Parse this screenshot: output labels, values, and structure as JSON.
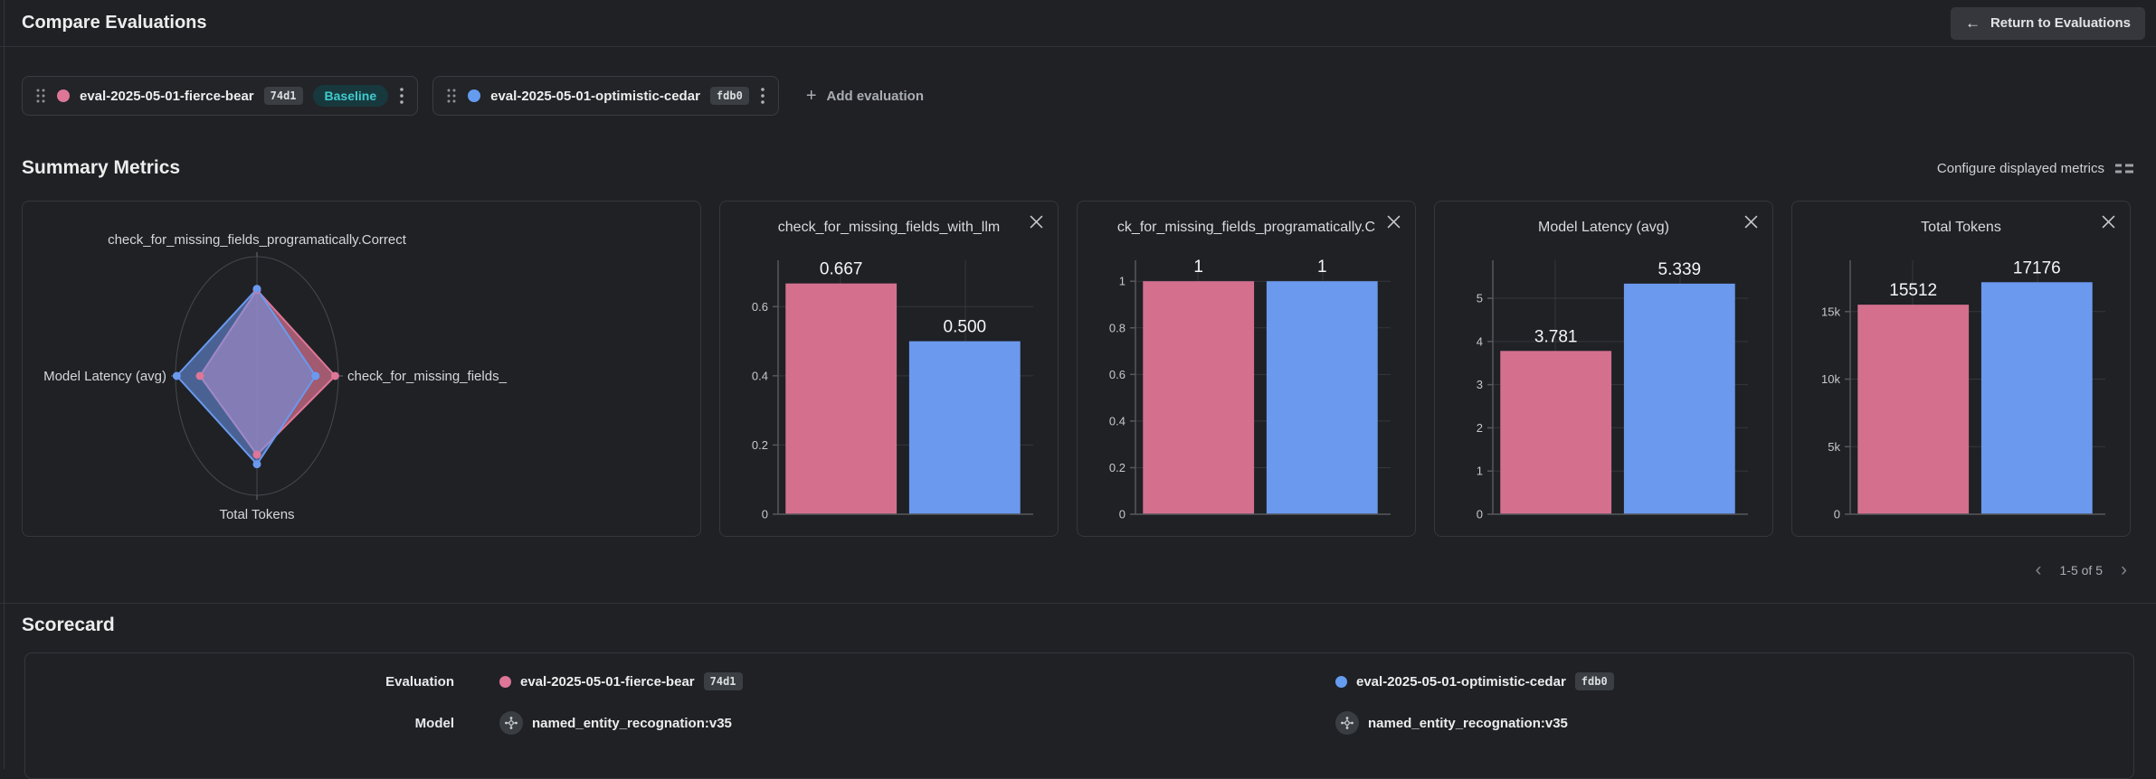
{
  "header": {
    "title": "Compare Evaluations",
    "return_label": "Return to Evaluations"
  },
  "icons": {
    "back_arrow": "←",
    "plus": "+",
    "prev_chevron": "‹",
    "next_chevron": "›"
  },
  "colors": {
    "pink": "#d4708e",
    "blue": "#6b99ee",
    "pink_fill": "rgba(212,112,142,0.72)",
    "blue_fill": "rgba(107,153,238,0.55)",
    "teal_text": "#40cbd0",
    "teal_bg": "#17393d"
  },
  "evaluations": [
    {
      "name": "eval-2025-05-01-fierce-bear",
      "hash": "74d1",
      "color": "#dd7697",
      "baseline": true,
      "baseline_label": "Baseline"
    },
    {
      "name": "eval-2025-05-01-optimistic-cedar",
      "hash": "fdb0",
      "color": "#649cf0",
      "baseline": false
    }
  ],
  "toolbar": {
    "add_label": "Add evaluation"
  },
  "summary": {
    "heading": "Summary Metrics",
    "configure_label": "Configure displayed metrics",
    "pagination": {
      "range": "1-5 of 5"
    }
  },
  "chart_data": [
    {
      "type": "radar",
      "closable": false,
      "axes": [
        "check_for_missing_fields_programatically.Correct",
        "check_for_missing_fields_",
        "Total Tokens",
        "Model Latency (avg)"
      ],
      "series": [
        {
          "name": "eval-2025-05-01-fierce-bear",
          "color": "#dd7697",
          "fill": "rgba(212,112,142,0.72)",
          "values_norm": [
            0.72,
            0.96,
            0.66,
            0.7
          ]
        },
        {
          "name": "eval-2025-05-01-optimistic-cedar",
          "color": "#6b99ee",
          "fill": "rgba(107,153,238,0.55)",
          "values_norm": [
            0.73,
            0.72,
            0.74,
            0.985
          ]
        }
      ]
    },
    {
      "type": "bar",
      "closable": true,
      "title": "check_for_missing_fields_with_llm",
      "categories": [
        "eval-2025-05-01-fierce-bear",
        "eval-2025-05-01-optimistic-cedar"
      ],
      "values": [
        0.667,
        0.5
      ],
      "value_labels": [
        "0.667",
        "0.500"
      ],
      "ymax": 0.734,
      "ticks": [
        {
          "v": 0,
          "label": "0"
        },
        {
          "v": 0.2,
          "label": "0.2"
        },
        {
          "v": 0.4,
          "label": "0.4"
        },
        {
          "v": 0.6,
          "label": "0.6"
        }
      ]
    },
    {
      "type": "bar",
      "closable": true,
      "title": "ck_for_missing_fields_programatically.C",
      "categories": [
        "eval-2025-05-01-fierce-bear",
        "eval-2025-05-01-optimistic-cedar"
      ],
      "values": [
        1,
        1
      ],
      "value_labels": [
        "1",
        "1"
      ],
      "ymax": 1.09,
      "ticks": [
        {
          "v": 0,
          "label": "0"
        },
        {
          "v": 0.2,
          "label": "0.2"
        },
        {
          "v": 0.4,
          "label": "0.4"
        },
        {
          "v": 0.6,
          "label": "0.6"
        },
        {
          "v": 0.8,
          "label": "0.8"
        },
        {
          "v": 1,
          "label": "1"
        }
      ]
    },
    {
      "type": "bar",
      "closable": true,
      "title": "Model Latency (avg)",
      "categories": [
        "eval-2025-05-01-fierce-bear",
        "eval-2025-05-01-optimistic-cedar"
      ],
      "values": [
        3.781,
        5.339
      ],
      "value_labels": [
        "3.781",
        "5.339"
      ],
      "ymax": 5.88,
      "ticks": [
        {
          "v": 0,
          "label": "0"
        },
        {
          "v": 1,
          "label": "1"
        },
        {
          "v": 2,
          "label": "2"
        },
        {
          "v": 3,
          "label": "3"
        },
        {
          "v": 4,
          "label": "4"
        },
        {
          "v": 5,
          "label": "5"
        }
      ]
    },
    {
      "type": "bar",
      "closable": true,
      "title": "Total Tokens",
      "categories": [
        "eval-2025-05-01-fierce-bear",
        "eval-2025-05-01-optimistic-cedar"
      ],
      "values": [
        15512,
        17176
      ],
      "value_labels": [
        "15512",
        "17176"
      ],
      "ymax": 18800,
      "ticks": [
        {
          "v": 0,
          "label": "0"
        },
        {
          "v": 5000,
          "label": "5k"
        },
        {
          "v": 10000,
          "label": "10k"
        },
        {
          "v": 15000,
          "label": "15k"
        }
      ]
    }
  ],
  "scorecard": {
    "heading": "Scorecard",
    "row_labels": {
      "evaluation": "Evaluation",
      "model": "Model"
    },
    "columns": [
      {
        "eval_name": "eval-2025-05-01-fierce-bear",
        "eval_hash": "74d1",
        "dot_color": "#dd7697",
        "model": "named_entity_recognation:v35"
      },
      {
        "eval_name": "eval-2025-05-01-optimistic-cedar",
        "eval_hash": "fdb0",
        "dot_color": "#649cf0",
        "model": "named_entity_recognation:v35"
      }
    ]
  }
}
